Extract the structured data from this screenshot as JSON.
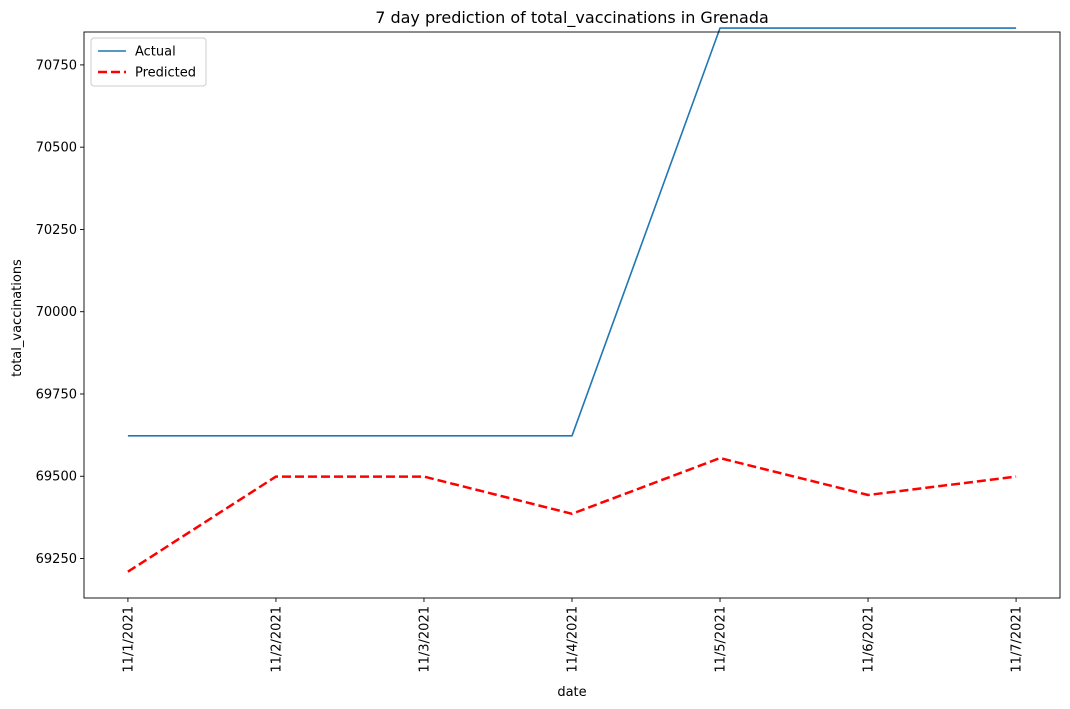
{
  "chart_data": {
    "type": "line",
    "title": "7 day prediction of total_vaccinations in Grenada",
    "xlabel": "date",
    "ylabel": "total_vaccinations",
    "categories": [
      "11/1/2021",
      "11/2/2021",
      "11/3/2021",
      "11/4/2021",
      "11/5/2021",
      "11/6/2021",
      "11/7/2021"
    ],
    "yticks": [
      69250,
      69500,
      69750,
      70000,
      70250,
      70500,
      70750
    ],
    "ylim": [
      69130,
      70850
    ],
    "grid": false,
    "legend_position": "top-left",
    "series": [
      {
        "name": "Actual",
        "color": "#1f77b4",
        "style": "solid",
        "values": [
          69623,
          69623,
          69623,
          69623,
          70862,
          70862,
          70862
        ]
      },
      {
        "name": "Predicted",
        "color": "#ff0000",
        "style": "dashed",
        "values": [
          69210,
          69499,
          69499,
          69386,
          69555,
          69443,
          69499
        ]
      }
    ]
  }
}
